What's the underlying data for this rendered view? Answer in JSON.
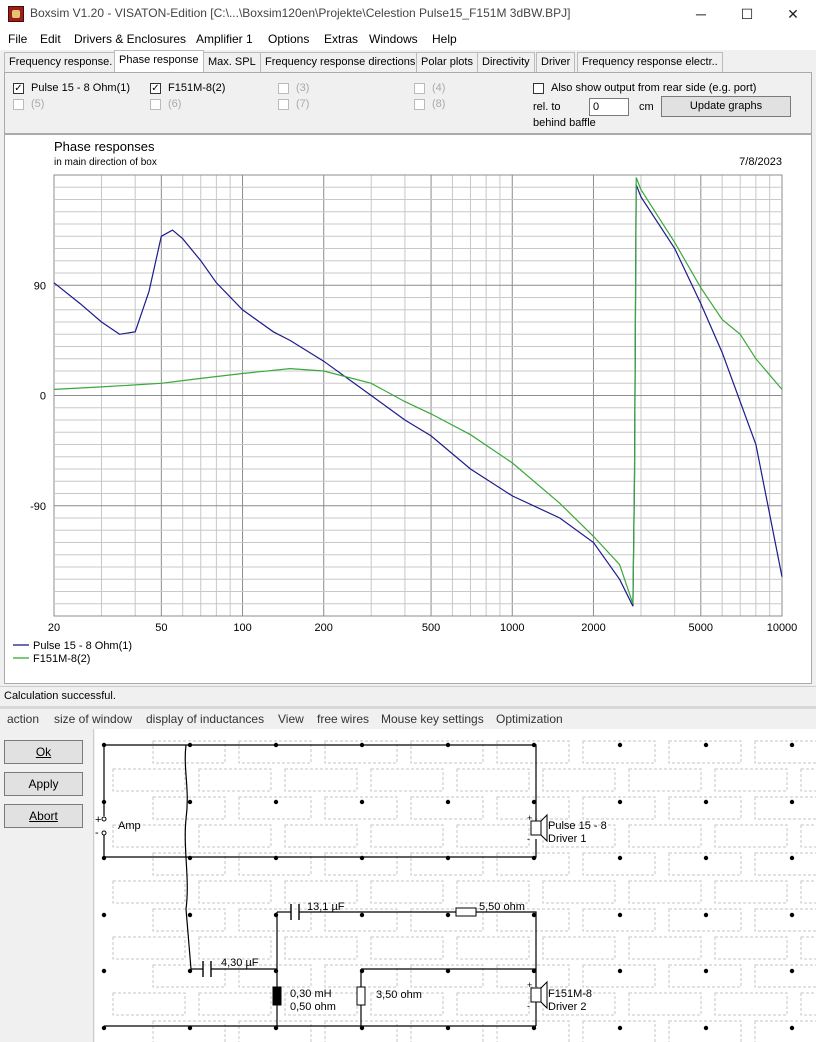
{
  "window": {
    "title": "Boxsim V1.20 - VISATON-Edition [C:\\...\\Boxsim120en\\Projekte\\Celestion Pulse15_F151M 3dBW.BPJ]",
    "minimize": "─",
    "maximize": "☐",
    "close": "✕"
  },
  "menu": [
    "File",
    "Edit",
    "Drivers & Enclosures",
    "Amplifier 1",
    "Options",
    "Extras",
    "Windows",
    "Help"
  ],
  "tabs": [
    "Frequency response.",
    "Phase response",
    "Max. SPL",
    "Frequency response directions",
    "Polar plots",
    "Directivity",
    "Driver",
    "Frequency response electr.."
  ],
  "drivers": {
    "d1": {
      "label": "Pulse 15 - 8 Ohm(1)",
      "check": "✓"
    },
    "d2": {
      "label": "F151M-8(2)",
      "check": "✓"
    },
    "d3": "(3)",
    "d4": "(4)",
    "d5": "(5)",
    "d6": "(6)",
    "d7": "(7)",
    "d8": "(8)"
  },
  "options": {
    "rear_label": "Also show output from rear side (e.g. port)",
    "rel_to": "rel. to",
    "offset_value": "0",
    "unit": "cm",
    "behind_baffle": "behind baffle",
    "update_button": "Update graphs"
  },
  "chart_data": {
    "type": "line",
    "title": "Phase responses",
    "subtitle": "in main direction of box",
    "date": "7/8/2023",
    "xlabel": "",
    "ylabel": "",
    "xscale": "log",
    "xlim": [
      20,
      10000
    ],
    "ylim": [
      -180,
      180
    ],
    "x_ticks": [
      20,
      50,
      100,
      200,
      500,
      1000,
      2000,
      5000,
      10000
    ],
    "y_ticks": [
      90,
      0,
      -90
    ],
    "grid": true,
    "legend_position": "bottom-left",
    "series": [
      {
        "name": "Pulse 15 - 8 Ohm(1)",
        "color": "#1c1c8c",
        "x": [
          20,
          25,
          30,
          35,
          40,
          45,
          50,
          55,
          60,
          70,
          80,
          100,
          130,
          150,
          200,
          300,
          400,
          500,
          700,
          1000,
          1500,
          2000,
          2500,
          2800,
          2840,
          2880,
          3000,
          4000,
          5000,
          6000,
          8000,
          10000
        ],
        "y": [
          92,
          75,
          60,
          50,
          52,
          85,
          130,
          135,
          128,
          110,
          92,
          70,
          52,
          45,
          28,
          0,
          -20,
          -33,
          -60,
          -82,
          -100,
          -120,
          -150,
          -172,
          -65,
          172,
          162,
          120,
          75,
          35,
          -40,
          -148
        ]
      },
      {
        "name": "F151M-8(2)",
        "color": "#3aa83a",
        "x": [
          20,
          30,
          50,
          70,
          100,
          150,
          200,
          300,
          400,
          500,
          700,
          1000,
          1500,
          2000,
          2500,
          2800,
          2840,
          2880,
          3000,
          4000,
          5000,
          6000,
          7000,
          8000,
          10000
        ],
        "y": [
          5,
          7,
          10,
          14,
          18,
          22,
          20,
          10,
          -5,
          -15,
          -32,
          -55,
          -88,
          -115,
          -138,
          -170,
          -70,
          178,
          168,
          125,
          88,
          62,
          50,
          30,
          5
        ]
      }
    ]
  },
  "status": "Calculation successful.",
  "crossover_menu": [
    "action",
    "size of window",
    "display of inductances",
    "View",
    "free wires",
    "Mouse key settings",
    "Optimization"
  ],
  "buttons": {
    "ok": "Ok",
    "apply": "Apply",
    "abort": "Abort"
  },
  "schematic": {
    "amp": "Amp",
    "plus": "+",
    "minus": "-",
    "driver1_name": "Pulse 15 - 8",
    "driver1_num": "Driver 1",
    "driver2_name": "F151M-8",
    "driver2_num": "Driver 2",
    "c1": "13,1 µF",
    "r1": "5,50 ohm",
    "c2": "4,30 µF",
    "l1": "0,30 mH",
    "l1r": "0,50 ohm",
    "r2": "3,50 ohm"
  }
}
